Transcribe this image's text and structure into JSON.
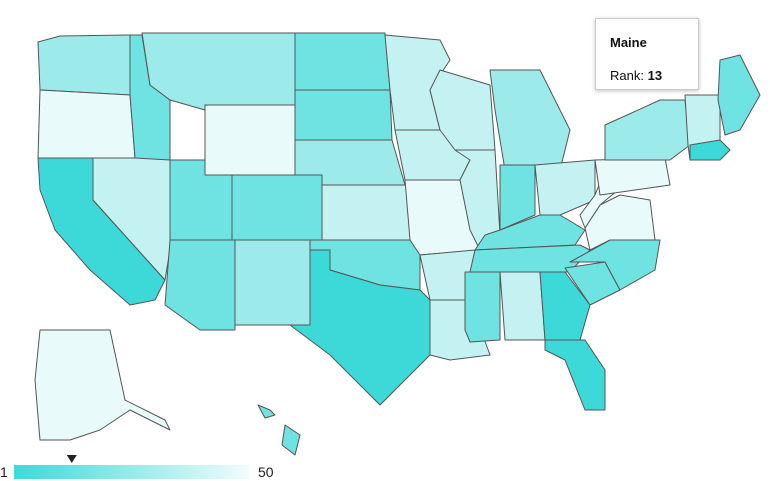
{
  "tooltip": {
    "title": "Maine",
    "rank_label": "Rank:",
    "rank": 13
  },
  "legend": {
    "min": 1,
    "max": 50
  }
}
